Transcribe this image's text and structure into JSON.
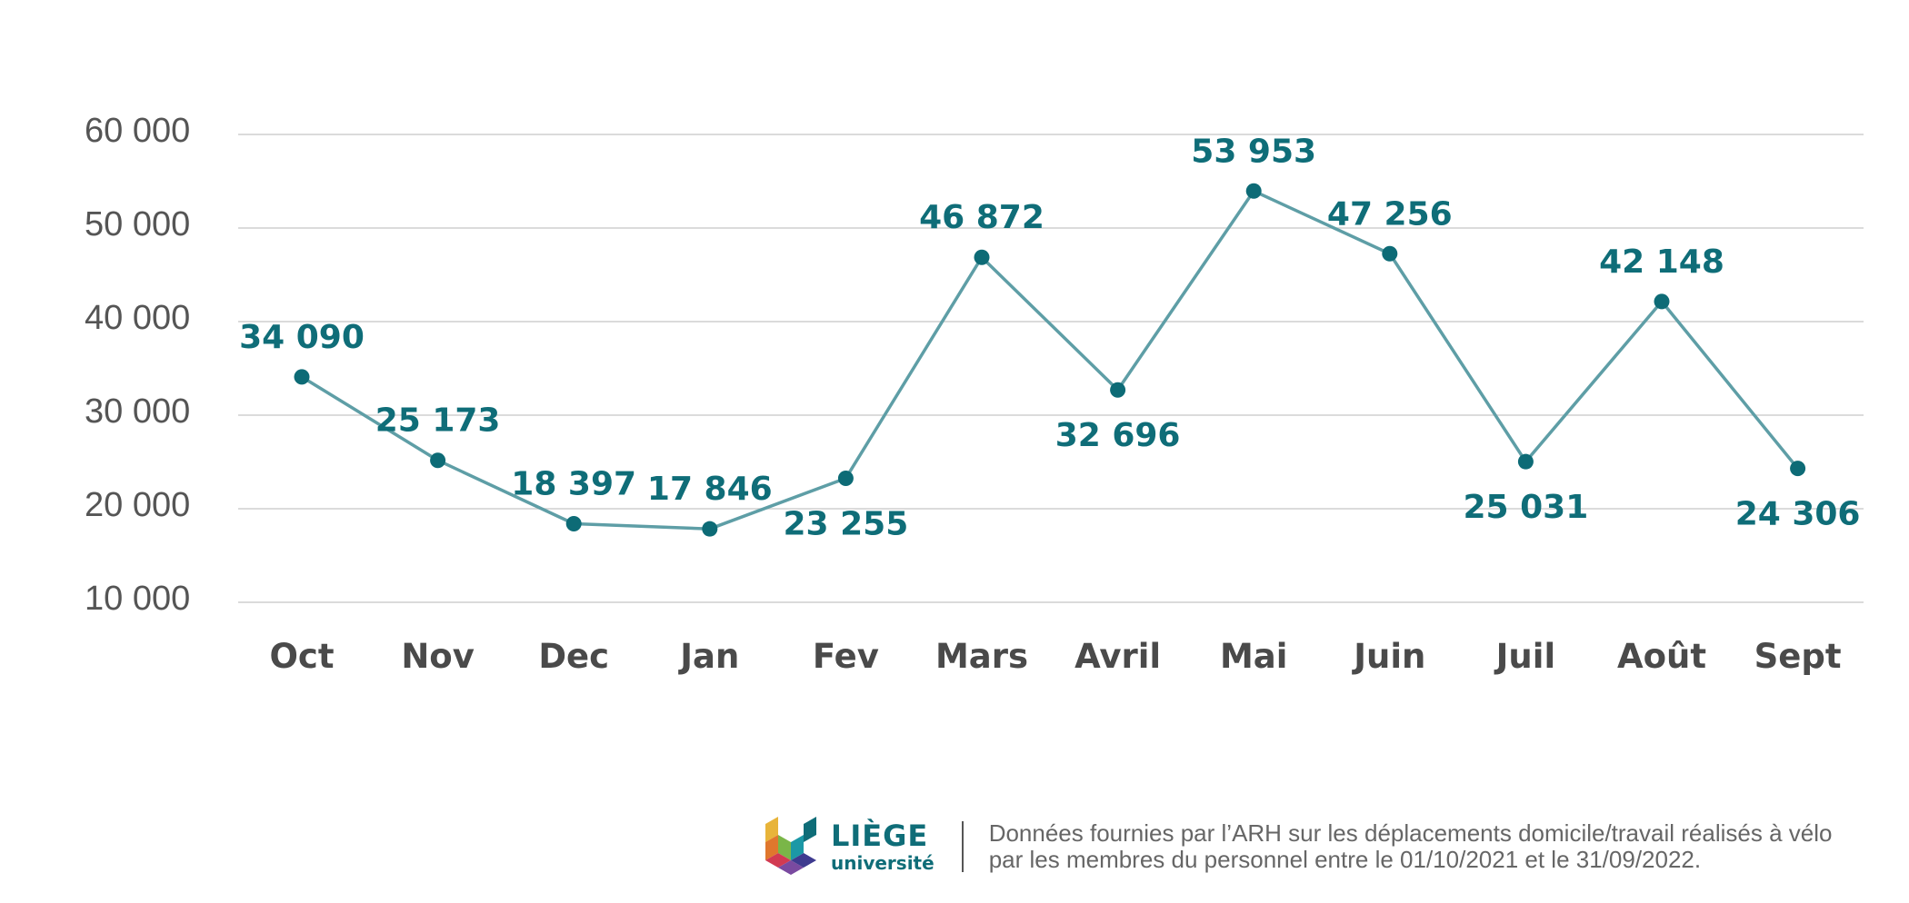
{
  "chart_data": {
    "type": "line",
    "categories": [
      "Oct",
      "Nov",
      "Dec",
      "Jan",
      "Fev",
      "Mars",
      "Avril",
      "Mai",
      "Juin",
      "Juil",
      "Août",
      "Sept"
    ],
    "values": [
      34090,
      25173,
      18397,
      17846,
      23255,
      46872,
      32696,
      53953,
      47256,
      25031,
      42148,
      24306
    ],
    "data_labels": [
      "34 090",
      "25 173",
      "18 397",
      "17 846",
      "23 255",
      "46 872",
      "32 696",
      "53 953",
      "47 256",
      "25 031",
      "42 148",
      "24 306"
    ],
    "label_position": [
      "above",
      "above",
      "above",
      "above",
      "below",
      "above",
      "below",
      "above",
      "above",
      "below",
      "above",
      "below"
    ],
    "yticks": [
      10000,
      20000,
      30000,
      40000,
      50000,
      60000
    ],
    "ytick_labels": [
      "10 000",
      "20 000",
      "30 000",
      "40 000",
      "50 000",
      "60 000"
    ],
    "ylim": [
      10000,
      60000
    ],
    "grid": true,
    "title": "",
    "xlabel": "",
    "ylabel": "",
    "colors": {
      "line": "#5e9ea6",
      "marker": "#0d6b76",
      "label": "#0f6d78"
    }
  },
  "footer": {
    "logo_name": "LIÈGE",
    "logo_sub": "université",
    "note_line1": "Données fournies par l’ARH sur les déplacements domicile/travail réalisés à vélo",
    "note_line2": "par les membres du personnel entre le 01/10/2021 et le 31/09/2022."
  }
}
